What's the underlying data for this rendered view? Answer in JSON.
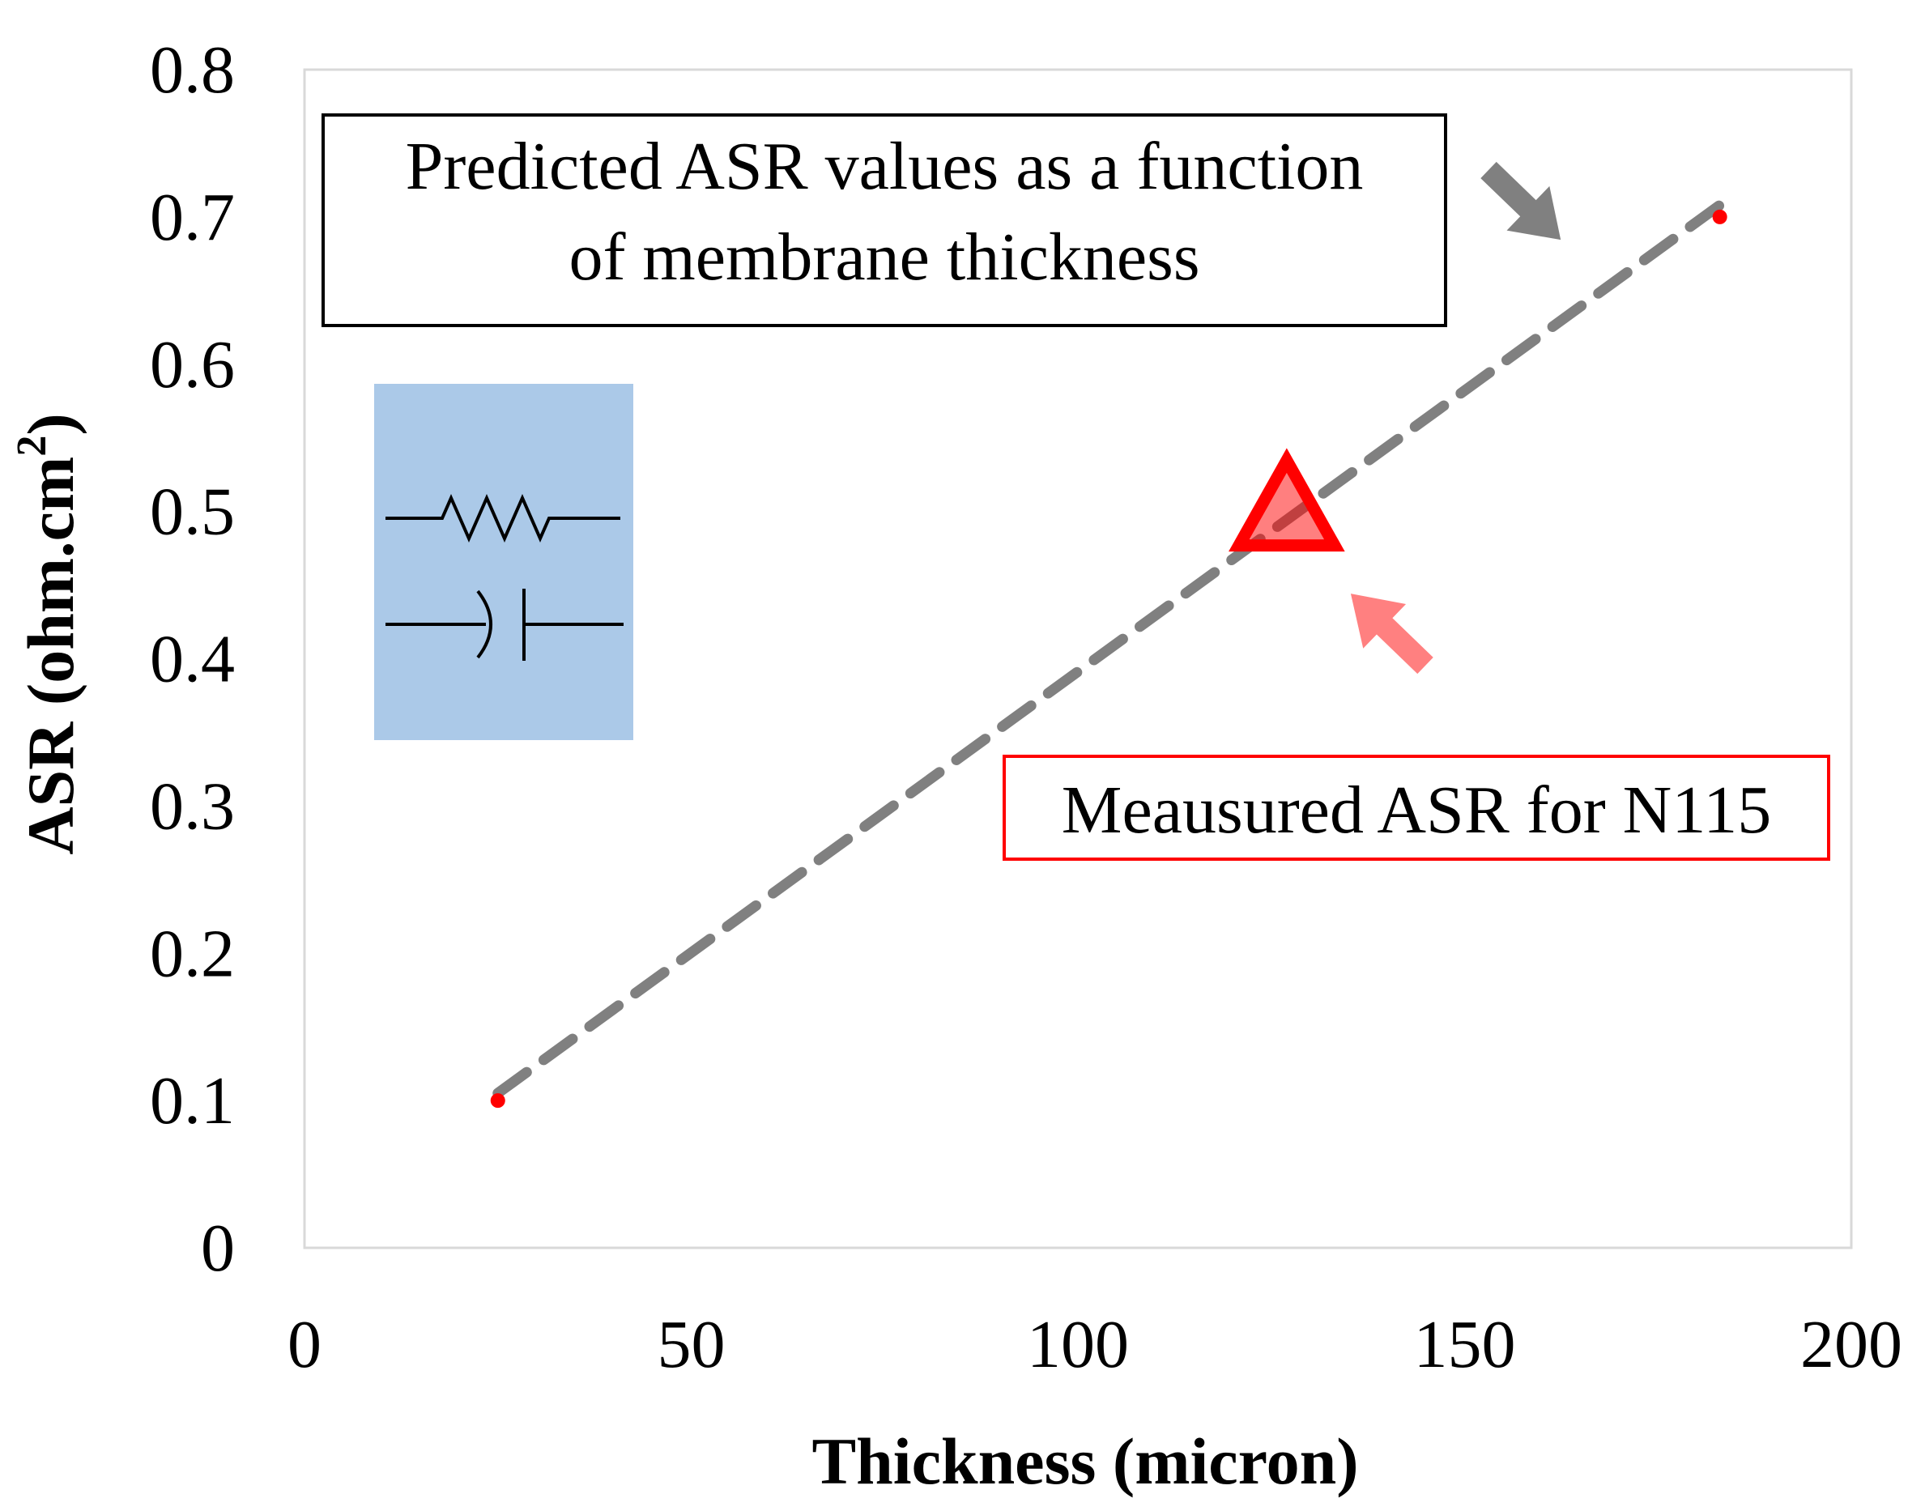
{
  "chart_data": {
    "type": "scatter",
    "title": "",
    "xlabel": "Thickness (micron)",
    "ylabel": "ASR (ohm.cm",
    "ylabel_sup": "2",
    "ylabel_close": ")",
    "xlim": [
      0,
      200
    ],
    "ylim": [
      0,
      0.8
    ],
    "x_ticks": [
      "0",
      "50",
      "100",
      "150",
      "200"
    ],
    "y_ticks": [
      "0",
      "0.1",
      "0.2",
      "0.3",
      "0.4",
      "0.5",
      "0.6",
      "0.7",
      "0.8"
    ],
    "series": [
      {
        "name": "predicted-points",
        "x": [
          25,
          183
        ],
        "y": [
          0.1,
          0.7
        ],
        "color": "#ff0000",
        "marker": "circle"
      },
      {
        "name": "measured-n115",
        "x": [
          127
        ],
        "y": [
          0.5
        ],
        "color": "#ff0000",
        "marker": "triangle"
      }
    ],
    "trendline": {
      "x": [
        25,
        183
      ],
      "y": [
        0.105,
        0.708
      ],
      "color": "#808080",
      "style": "dashed"
    },
    "annotations": {
      "predicted_line1": "Predicted ASR values as a function",
      "predicted_line2": "of membrane thickness",
      "measured": "Meausured ASR for N115"
    },
    "colors": {
      "grey_arrow": "#808080",
      "pink_arrow": "#ff8080",
      "circuit_bg": "#abc9e8",
      "measured_box": "#ff0000"
    }
  }
}
